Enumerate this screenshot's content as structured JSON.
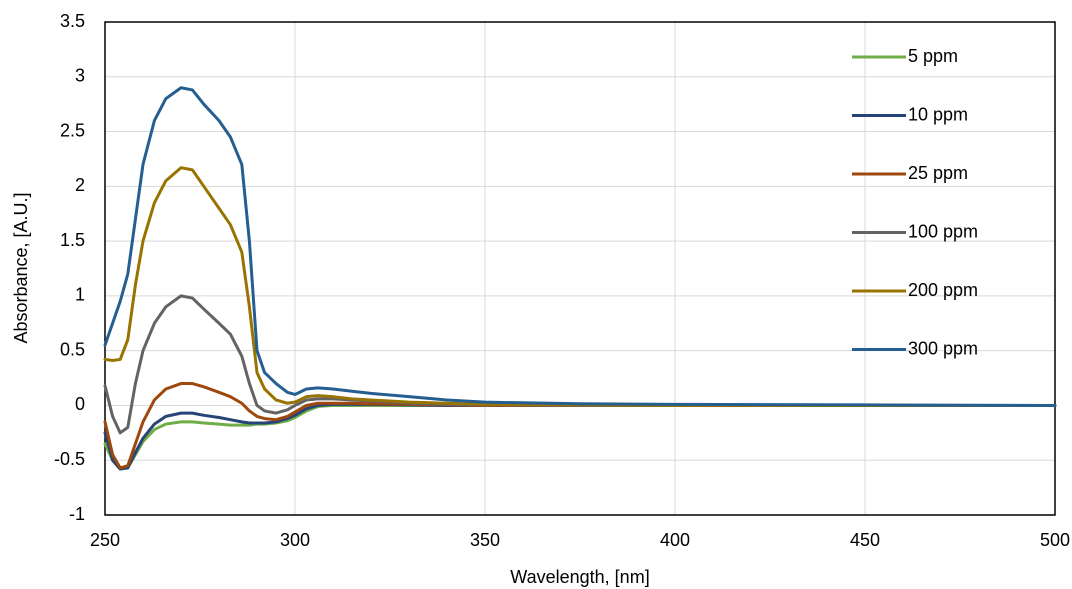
{
  "chart_data": {
    "type": "line",
    "x_label": "Wavelength, [nm]",
    "y_label": "Absorbance, [A.U.]",
    "x": [
      250,
      252,
      254,
      256,
      258,
      260,
      263,
      266,
      270,
      273,
      276,
      280,
      283,
      286,
      288,
      290,
      292,
      295,
      298,
      300,
      303,
      306,
      310,
      315,
      320,
      330,
      340,
      350,
      375,
      400,
      450,
      500
    ],
    "series": [
      {
        "name": "5 ppm",
        "color": "#70ad47",
        "values": [
          -0.35,
          -0.5,
          -0.58,
          -0.57,
          -0.45,
          -0.33,
          -0.22,
          -0.17,
          -0.15,
          -0.15,
          -0.16,
          -0.17,
          -0.18,
          -0.18,
          -0.18,
          -0.17,
          -0.17,
          -0.16,
          -0.14,
          -0.11,
          -0.05,
          -0.01,
          0,
          0,
          0,
          0,
          0,
          0,
          0,
          0,
          0,
          0
        ]
      },
      {
        "name": "10 ppm",
        "color": "#264478",
        "values": [
          -0.25,
          -0.5,
          -0.58,
          -0.57,
          -0.43,
          -0.3,
          -0.17,
          -0.1,
          -0.07,
          -0.07,
          -0.09,
          -0.11,
          -0.13,
          -0.15,
          -0.16,
          -0.16,
          -0.16,
          -0.15,
          -0.12,
          -0.09,
          -0.03,
          0,
          0.01,
          0.01,
          0.01,
          0.005,
          0,
          0,
          0,
          0,
          0,
          0
        ]
      },
      {
        "name": "25 ppm",
        "color": "#9e480e",
        "values": [
          -0.15,
          -0.45,
          -0.57,
          -0.55,
          -0.35,
          -0.15,
          0.05,
          0.15,
          0.2,
          0.2,
          0.17,
          0.12,
          0.08,
          0.02,
          -0.05,
          -0.1,
          -0.12,
          -0.13,
          -0.1,
          -0.06,
          0,
          0.02,
          0.02,
          0.02,
          0.015,
          0.01,
          0.005,
          0,
          0,
          0,
          0,
          0
        ]
      },
      {
        "name": "100 ppm",
        "color": "#636363",
        "values": [
          0.18,
          -0.1,
          -0.25,
          -0.2,
          0.2,
          0.5,
          0.75,
          0.9,
          1.0,
          0.98,
          0.88,
          0.75,
          0.65,
          0.45,
          0.2,
          0,
          -0.05,
          -0.07,
          -0.04,
          0,
          0.05,
          0.06,
          0.06,
          0.05,
          0.04,
          0.02,
          0.01,
          0.005,
          0,
          0,
          0,
          0
        ]
      },
      {
        "name": "200 ppm",
        "color": "#997300",
        "values": [
          0.42,
          0.41,
          0.42,
          0.6,
          1.1,
          1.5,
          1.85,
          2.05,
          2.17,
          2.15,
          2.0,
          1.8,
          1.65,
          1.4,
          0.9,
          0.3,
          0.15,
          0.05,
          0.02,
          0.03,
          0.08,
          0.09,
          0.08,
          0.06,
          0.05,
          0.03,
          0.02,
          0.01,
          0.005,
          0,
          0,
          0
        ]
      },
      {
        "name": "300 ppm",
        "color": "#255e91",
        "values": [
          0.55,
          0.75,
          0.95,
          1.2,
          1.7,
          2.2,
          2.6,
          2.8,
          2.9,
          2.88,
          2.75,
          2.6,
          2.45,
          2.2,
          1.5,
          0.5,
          0.3,
          0.2,
          0.12,
          0.1,
          0.15,
          0.16,
          0.15,
          0.13,
          0.11,
          0.08,
          0.05,
          0.03,
          0.015,
          0.01,
          0.005,
          0
        ]
      }
    ],
    "xlim": [
      250,
      500
    ],
    "ylim": [
      -1,
      3.5
    ],
    "xticks": [
      250,
      300,
      350,
      400,
      450,
      500
    ],
    "yticks": [
      -1,
      -0.5,
      0,
      0.5,
      1,
      1.5,
      2,
      2.5,
      3,
      3.5
    ],
    "grid": true
  }
}
